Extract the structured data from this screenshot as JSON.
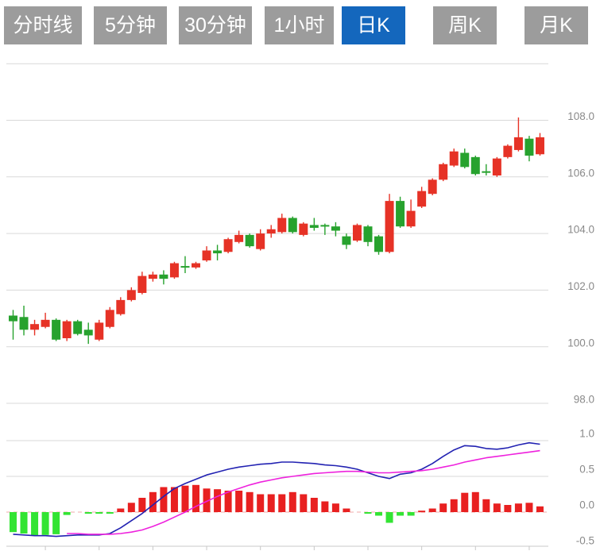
{
  "toolbar": {
    "tabs": [
      {
        "label": "分时线",
        "active": false
      },
      {
        "label": "5分钟",
        "active": false
      },
      {
        "label": "30分钟",
        "active": false
      },
      {
        "label": "1小时",
        "active": false
      },
      {
        "label": "日K",
        "active": true
      },
      {
        "label": "周K",
        "active": false
      },
      {
        "label": "月K",
        "active": false
      }
    ]
  },
  "colors": {
    "tab_active_bg": "#1467bd",
    "tab_inactive_bg": "#9c9c9c",
    "tab_text": "#ffffff",
    "up": "#e63226",
    "down": "#27a22e",
    "macd_up": "#e82020",
    "macd_down": "#33e433",
    "dif_line": "#2222b2",
    "dea_line": "#ee22dd",
    "grid": "#d9d9d9",
    "axis": "#c8c8c8",
    "zero_line": "#f0a8a8",
    "axis_label": "#8a8a8a"
  },
  "chart_data": {
    "type": "candlestick",
    "convention": "red=bullish(up), green=bearish(down)",
    "title": "",
    "price_axis": {
      "labels": [
        "108.0",
        "106.0",
        "104.0",
        "102.0",
        "100.0",
        "98.0"
      ],
      "tick_values": [
        108,
        106,
        104,
        102,
        100,
        98
      ],
      "gridline_values": [
        110,
        108,
        106,
        104,
        102,
        100,
        98
      ],
      "ylim": [
        97.3,
        110.0
      ]
    },
    "candle_columns": [
      "open",
      "close",
      "high",
      "low"
    ],
    "candles": [
      [
        101.1,
        100.9,
        101.3,
        100.25
      ],
      [
        101.05,
        100.6,
        101.45,
        100.4
      ],
      [
        100.6,
        100.8,
        100.95,
        100.4
      ],
      [
        100.7,
        100.95,
        101.2,
        100.65
      ],
      [
        100.95,
        100.25,
        101.0,
        100.2
      ],
      [
        100.3,
        100.9,
        100.95,
        100.2
      ],
      [
        100.9,
        100.45,
        100.95,
        100.4
      ],
      [
        100.6,
        100.4,
        100.85,
        100.1
      ],
      [
        100.25,
        100.85,
        100.95,
        100.2
      ],
      [
        100.7,
        101.3,
        101.4,
        100.65
      ],
      [
        101.15,
        101.65,
        101.75,
        101.1
      ],
      [
        101.65,
        102.0,
        102.1,
        101.6
      ],
      [
        101.9,
        102.5,
        102.65,
        101.85
      ],
      [
        102.4,
        102.55,
        102.65,
        102.3
      ],
      [
        102.55,
        102.4,
        102.7,
        102.2
      ],
      [
        102.45,
        102.95,
        103.0,
        102.4
      ],
      [
        102.85,
        102.8,
        103.2,
        102.6
      ],
      [
        102.8,
        102.95,
        103.0,
        102.75
      ],
      [
        103.05,
        103.4,
        103.55,
        103.0
      ],
      [
        103.4,
        103.3,
        103.6,
        103.05
      ],
      [
        103.35,
        103.8,
        103.85,
        103.3
      ],
      [
        103.7,
        103.95,
        104.1,
        103.65
      ],
      [
        103.95,
        103.55,
        104.0,
        103.5
      ],
      [
        103.45,
        104.0,
        104.15,
        103.4
      ],
      [
        104.0,
        104.15,
        104.3,
        103.85
      ],
      [
        104.05,
        104.55,
        104.7,
        104.0
      ],
      [
        104.55,
        104.05,
        104.6,
        104.0
      ],
      [
        103.95,
        104.35,
        104.4,
        103.9
      ],
      [
        104.3,
        104.2,
        104.55,
        104.1
      ],
      [
        104.3,
        104.26,
        104.35,
        103.95
      ],
      [
        104.25,
        104.1,
        104.4,
        103.9
      ],
      [
        103.9,
        103.6,
        104.0,
        103.45
      ],
      [
        103.75,
        104.3,
        104.35,
        103.7
      ],
      [
        104.25,
        103.7,
        104.3,
        103.55
      ],
      [
        103.9,
        103.35,
        103.95,
        103.25
      ],
      [
        103.35,
        105.15,
        105.4,
        103.3
      ],
      [
        105.15,
        104.25,
        105.3,
        104.2
      ],
      [
        104.25,
        104.8,
        105.2,
        104.2
      ],
      [
        104.95,
        105.5,
        105.65,
        104.9
      ],
      [
        105.4,
        105.9,
        105.95,
        105.35
      ],
      [
        105.9,
        106.45,
        106.5,
        105.85
      ],
      [
        106.4,
        106.9,
        107.0,
        106.35
      ],
      [
        106.85,
        106.35,
        107.0,
        106.3
      ],
      [
        106.7,
        106.1,
        106.75,
        106.05
      ],
      [
        106.2,
        106.15,
        106.45,
        106.05
      ],
      [
        106.05,
        106.65,
        106.7,
        106.0
      ],
      [
        106.7,
        107.1,
        107.15,
        106.65
      ],
      [
        106.95,
        107.4,
        108.1,
        106.9
      ],
      [
        107.35,
        106.75,
        107.45,
        106.55
      ],
      [
        106.8,
        107.4,
        107.55,
        106.75
      ]
    ],
    "macd": {
      "axis_labels": [
        "1.0",
        "0.5",
        "0.0",
        "-0.5"
      ],
      "axis_values": [
        1.0,
        0.5,
        0.0,
        -0.5
      ],
      "ylim": [
        -0.55,
        1.05
      ],
      "histogram": [
        -0.28,
        -0.3,
        -0.33,
        -0.32,
        -0.31,
        -0.04,
        0,
        -0.02,
        -0.02,
        -0.02,
        0.05,
        0.13,
        0.2,
        0.28,
        0.35,
        0.35,
        0.37,
        0.38,
        0.33,
        0.32,
        0.3,
        0.3,
        0.28,
        0.25,
        0.25,
        0.25,
        0.28,
        0.25,
        0.2,
        0.15,
        0.12,
        0.05,
        0,
        -0.02,
        -0.05,
        -0.15,
        -0.05,
        -0.05,
        0.02,
        0.05,
        0.12,
        0.18,
        0.27,
        0.28,
        0.18,
        0.12,
        0.1,
        0.12,
        0.13,
        0.08
      ],
      "dif": [
        -0.31,
        -0.32,
        -0.33,
        -0.33,
        -0.34,
        -0.33,
        -0.32,
        -0.32,
        -0.32,
        -0.3,
        -0.22,
        -0.12,
        -0.02,
        0.1,
        0.22,
        0.33,
        0.4,
        0.46,
        0.52,
        0.56,
        0.6,
        0.63,
        0.65,
        0.67,
        0.68,
        0.7,
        0.7,
        0.69,
        0.68,
        0.66,
        0.65,
        0.63,
        0.6,
        0.55,
        0.5,
        0.47,
        0.53,
        0.55,
        0.6,
        0.68,
        0.78,
        0.87,
        0.93,
        0.92,
        0.89,
        0.88,
        0.9,
        0.94,
        0.97,
        0.95
      ],
      "dea": [
        null,
        null,
        null,
        null,
        null,
        -0.3,
        -0.3,
        -0.31,
        -0.31,
        -0.31,
        -0.3,
        -0.28,
        -0.25,
        -0.2,
        -0.14,
        -0.07,
        0.0,
        0.08,
        0.15,
        0.22,
        0.28,
        0.33,
        0.38,
        0.42,
        0.45,
        0.48,
        0.5,
        0.52,
        0.54,
        0.55,
        0.56,
        0.57,
        0.57,
        0.56,
        0.55,
        0.55,
        0.56,
        0.57,
        0.58,
        0.6,
        0.63,
        0.66,
        0.7,
        0.73,
        0.76,
        0.78,
        0.8,
        0.82,
        0.84,
        0.86
      ]
    }
  }
}
